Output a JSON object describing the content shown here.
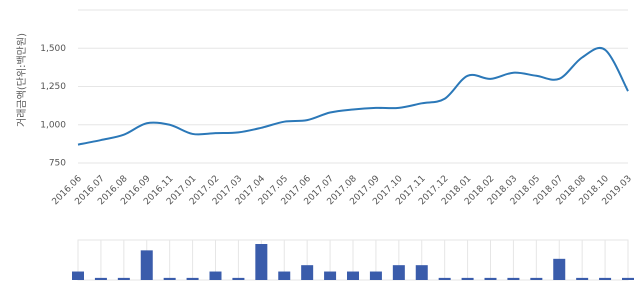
{
  "chart_data": {
    "type": "line",
    "y_label": "거래금액(단위:백만원)",
    "categories": [
      "2016.06",
      "2016.07",
      "2016.08",
      "2016.09",
      "2016.11",
      "2017.01",
      "2017.02",
      "2017.03",
      "2017.04",
      "2017.05",
      "2017.06",
      "2017.07",
      "2017.08",
      "2017.09",
      "2017.10",
      "2017.11",
      "2017.12",
      "2018.01",
      "2018.02",
      "2018.03",
      "2018.05",
      "2018.07",
      "2018.08",
      "2018.10",
      "2019.03"
    ],
    "series": [
      {
        "name": "거래금액",
        "color": "#2b78b8",
        "values": [
          870,
          900,
          935,
          1010,
          1000,
          940,
          945,
          950,
          980,
          1020,
          1030,
          1080,
          1100,
          1110,
          1110,
          1140,
          1170,
          1320,
          1300,
          1340,
          1320,
          1300,
          1440,
          1490,
          1220
        ]
      }
    ],
    "ylim": [
      750,
      1750
    ],
    "yticks": [
      750,
      {
        "value": 1000,
        "label": "1,000"
      },
      {
        "value": 1250,
        "label": "1,250"
      },
      {
        "value": 1500,
        "label": "1,500"
      }
    ],
    "grid": true,
    "volume": {
      "color": "#3a5cab",
      "values": [
        4,
        1,
        1,
        14,
        1,
        1,
        4,
        1,
        17,
        4,
        7,
        4,
        4,
        4,
        7,
        7,
        1,
        1,
        1,
        1,
        1,
        10,
        1,
        1,
        1
      ]
    }
  }
}
